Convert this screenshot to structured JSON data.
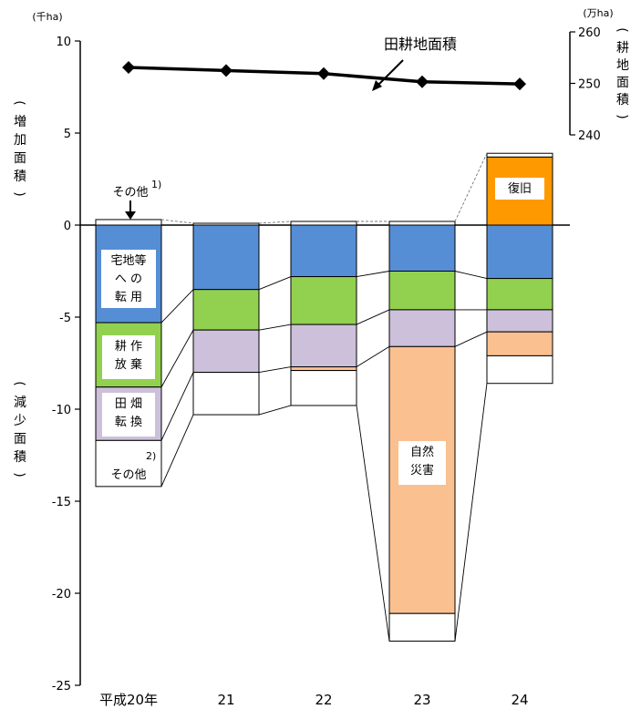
{
  "chart_data": {
    "type": "bar",
    "stacked": true,
    "categories": [
      "平成20年",
      "21",
      "22",
      "23",
      "24"
    ],
    "left_axis": {
      "unit": "(千ha)",
      "ylim": [
        -25,
        10
      ],
      "ticks": [
        10,
        5,
        0,
        -5,
        -10,
        -15,
        -20,
        -25
      ],
      "tick_labels": [
        "10",
        "5",
        "0",
        "-5",
        "-10",
        "-15",
        "-20",
        "-25"
      ],
      "label_increase": [
        "(",
        "増",
        "加",
        "面",
        "積",
        ")"
      ],
      "label_decrease": [
        "(",
        "減",
        "少",
        "面",
        "積",
        ")"
      ]
    },
    "right_axis": {
      "unit": "(万ha)",
      "ylim": [
        240,
        260
      ],
      "ticks": [
        260,
        250,
        240
      ],
      "tick_labels": [
        "260",
        "250",
        "240"
      ],
      "label": [
        "(",
        "耕",
        "地",
        "面",
        "積",
        ")"
      ]
    },
    "series": [
      {
        "name": "その他",
        "sup": "1)",
        "values": [
          0.3,
          0.1,
          0.2,
          0.2,
          0
        ],
        "color": "#ffffff"
      },
      {
        "name": "復旧",
        "values": [
          0,
          0,
          0,
          0,
          3.7
        ],
        "color": "#ff9900"
      },
      {
        "name": "宅地等への転用",
        "values": [
          -5.3,
          -3.5,
          -2.8,
          -2.5,
          -2.9
        ],
        "color": "#558ed5"
      },
      {
        "name": "耕作放棄",
        "values": [
          -3.5,
          -2.2,
          -2.6,
          -2.1,
          -1.7
        ],
        "color": "#92d050"
      },
      {
        "name": "田畑転換",
        "values": [
          -2.9,
          -2.3,
          -2.3,
          -2.0,
          -1.2
        ],
        "color": "#ccc0da"
      },
      {
        "name": "",
        "values": [
          0,
          0,
          -0.2,
          0,
          -1.3
        ],
        "color": "#fac090"
      },
      {
        "name": "自然災害",
        "values": [
          0,
          0,
          0,
          -14.5,
          0
        ],
        "color": "#fac090"
      },
      {
        "name": "その他",
        "sup": "2)",
        "values": [
          -2.5,
          -2.3,
          -1.9,
          -1.5,
          -1.5
        ],
        "color": "#ffffff"
      }
    ],
    "top_white_cap_24": 0.2,
    "line_series": {
      "name": "田耕地面積",
      "axis": "right",
      "values": [
        253.1,
        252.5,
        251.9,
        250.3,
        249.9
      ]
    },
    "bar_labels": {
      "housing": [
        "宅地等",
        "へ の",
        "転 用"
      ],
      "abandon": [
        "耕 作",
        "放 棄"
      ],
      "convert": [
        "田 畑",
        "転 換"
      ],
      "other_bottom": "その他",
      "other_bottom_sup": "2)",
      "other_top": "その他",
      "other_top_sup": "1)",
      "disaster": [
        "自然",
        "災害"
      ],
      "recovery": "復旧"
    }
  }
}
